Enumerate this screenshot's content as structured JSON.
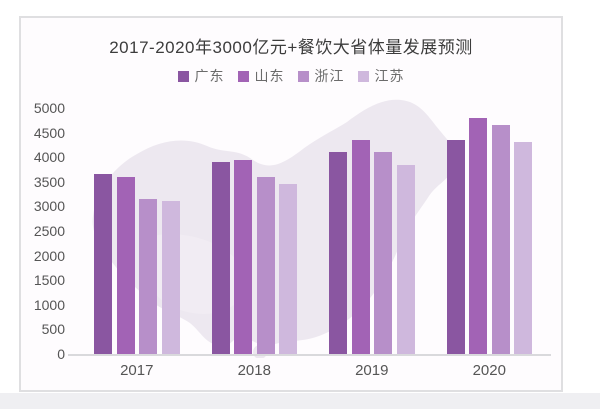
{
  "page": {
    "background": "#ffffff",
    "bottom_strip_color": "#efeff2",
    "card_border_color": "#dfdfe1",
    "card_background": "#fefcfe"
  },
  "chart_data": {
    "type": "bar",
    "title": "2017-2020年3000亿元+餐饮大省体量发展预测",
    "categories": [
      "2017",
      "2018",
      "2019",
      "2020"
    ],
    "series": [
      {
        "name": "广东",
        "color": "#8a56a1",
        "values": [
          3650,
          3900,
          4100,
          4350
        ]
      },
      {
        "name": "山东",
        "color": "#a263b5",
        "values": [
          3600,
          3950,
          4350,
          4800
        ]
      },
      {
        "name": "浙江",
        "color": "#b78fc9",
        "values": [
          3150,
          3600,
          4100,
          4650
        ]
      },
      {
        "name": "江苏",
        "color": "#cfb8dd",
        "values": [
          3100,
          3450,
          3850,
          4300
        ]
      }
    ],
    "xlabel": "",
    "ylabel": "",
    "ylim": [
      0,
      5000
    ],
    "ytick_step": 500,
    "yticks": [
      0,
      500,
      1000,
      1500,
      2000,
      2500,
      3000,
      3500,
      4000,
      4500,
      5000
    ],
    "grid": false,
    "legend_position": "top-center",
    "axis_line_color": "#d9d9dc",
    "tick_label_color": "#555555",
    "title_color": "#3c3c3c",
    "watermark": "china-map",
    "watermark_color": "#ebe5ee"
  }
}
